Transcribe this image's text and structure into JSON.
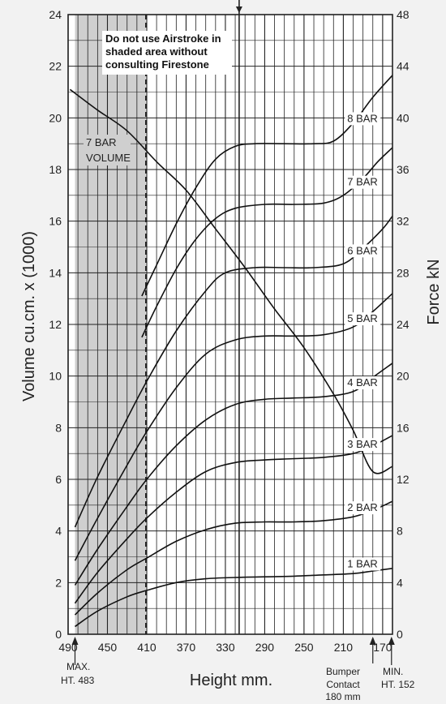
{
  "chart_data": {
    "type": "line",
    "xlabel": "Height mm.",
    "ylabel_left": "Volume cu.cm. x (1000)",
    "ylabel_right": "Force kN",
    "xlim": [
      490,
      160
    ],
    "x_ticks": [
      490,
      450,
      410,
      370,
      330,
      290,
      250,
      210,
      170
    ],
    "ylim_left": [
      0,
      24
    ],
    "y_ticks_left": [
      0,
      2,
      4,
      6,
      8,
      10,
      12,
      14,
      16,
      18,
      20,
      22,
      24
    ],
    "ylim_right": [
      0,
      48
    ],
    "y_ticks_right": [
      0,
      4,
      8,
      12,
      16,
      20,
      24,
      28,
      32,
      36,
      40,
      44,
      48
    ],
    "grid": true,
    "note": [
      "Do not use Airstroke in",
      "shaded area without",
      "consulting Firestone"
    ],
    "shaded_region": [
      483,
      411
    ],
    "annotations": {
      "max_height": [
        "MAX.",
        "HT. 483"
      ],
      "bumper_contact": [
        "Bumper",
        "Contact",
        "180 mm"
      ],
      "min_height": [
        "MIN.",
        "HT. 152"
      ]
    },
    "volume_series": {
      "name": "7 BAR VOLUME",
      "label_lines": [
        "7 BAR",
        "VOLUME"
      ],
      "axis": "left",
      "points": [
        [
          488,
          21.1
        ],
        [
          460,
          20.3
        ],
        [
          430,
          19.5
        ],
        [
          400,
          18.3
        ],
        [
          370,
          17.2
        ],
        [
          340,
          15.7
        ],
        [
          310,
          14.2
        ],
        [
          280,
          12.6
        ],
        [
          250,
          11.1
        ],
        [
          220,
          9.3
        ],
        [
          200,
          7.9
        ],
        [
          180,
          6.3
        ],
        [
          160,
          6.5
        ]
      ]
    },
    "series": [
      {
        "name": "1 BAR",
        "axis": "right",
        "points": [
          [
            483,
            0.6
          ],
          [
            460,
            1.8
          ],
          [
            430,
            2.9
          ],
          [
            410,
            3.4
          ],
          [
            380,
            4.0
          ],
          [
            350,
            4.3
          ],
          [
            320,
            4.4
          ],
          [
            290,
            4.45
          ],
          [
            260,
            4.5
          ],
          [
            230,
            4.6
          ],
          [
            200,
            4.7
          ],
          [
            180,
            4.9
          ],
          [
            160,
            5.1
          ]
        ]
      },
      {
        "name": "2 BAR",
        "axis": "right",
        "points": [
          [
            483,
            1.5
          ],
          [
            460,
            3.2
          ],
          [
            430,
            5.0
          ],
          [
            410,
            5.9
          ],
          [
            380,
            7.2
          ],
          [
            350,
            8.1
          ],
          [
            320,
            8.6
          ],
          [
            290,
            8.7
          ],
          [
            260,
            8.7
          ],
          [
            230,
            8.8
          ],
          [
            200,
            9.1
          ],
          [
            180,
            9.6
          ],
          [
            160,
            10.3
          ]
        ]
      },
      {
        "name": "3 BAR",
        "axis": "right",
        "points": [
          [
            483,
            2.4
          ],
          [
            460,
            4.8
          ],
          [
            430,
            7.4
          ],
          [
            410,
            9.0
          ],
          [
            380,
            11.0
          ],
          [
            350,
            12.6
          ],
          [
            320,
            13.3
          ],
          [
            290,
            13.5
          ],
          [
            260,
            13.6
          ],
          [
            230,
            13.7
          ],
          [
            200,
            14.0
          ],
          [
            180,
            14.6
          ],
          [
            160,
            15.4
          ]
        ]
      },
      {
        "name": "4 BAR",
        "axis": "right",
        "points": [
          [
            483,
            3.8
          ],
          [
            460,
            6.6
          ],
          [
            430,
            9.9
          ],
          [
            410,
            12.0
          ],
          [
            380,
            14.6
          ],
          [
            350,
            16.6
          ],
          [
            320,
            17.8
          ],
          [
            290,
            18.2
          ],
          [
            260,
            18.3
          ],
          [
            230,
            18.4
          ],
          [
            200,
            18.8
          ],
          [
            180,
            19.9
          ],
          [
            160,
            21.0
          ]
        ]
      },
      {
        "name": "5 BAR",
        "axis": "right",
        "points": [
          [
            483,
            5.7
          ],
          [
            460,
            9.0
          ],
          [
            430,
            13.1
          ],
          [
            410,
            15.7
          ],
          [
            380,
            19.1
          ],
          [
            350,
            21.7
          ],
          [
            320,
            22.8
          ],
          [
            290,
            23.1
          ],
          [
            260,
            23.1
          ],
          [
            230,
            23.2
          ],
          [
            200,
            23.8
          ],
          [
            180,
            25.0
          ],
          [
            160,
            26.4
          ]
        ]
      },
      {
        "name": "6 BAR",
        "axis": "right",
        "points": [
          [
            483,
            8.3
          ],
          [
            460,
            12.2
          ],
          [
            430,
            16.7
          ],
          [
            410,
            19.6
          ],
          [
            380,
            23.5
          ],
          [
            350,
            26.6
          ],
          [
            330,
            28.0
          ],
          [
            300,
            28.4
          ],
          [
            270,
            28.4
          ],
          [
            240,
            28.4
          ],
          [
            210,
            28.7
          ],
          [
            190,
            29.9
          ],
          [
            170,
            31.4
          ],
          [
            160,
            32.4
          ]
        ]
      },
      {
        "name": "7 BAR",
        "axis": "right",
        "points": [
          [
            415,
            23.0
          ],
          [
            400,
            25.4
          ],
          [
            380,
            28.3
          ],
          [
            360,
            30.6
          ],
          [
            340,
            32.2
          ],
          [
            320,
            33.0
          ],
          [
            290,
            33.3
          ],
          [
            260,
            33.3
          ],
          [
            230,
            33.4
          ],
          [
            210,
            34.0
          ],
          [
            190,
            35.3
          ],
          [
            175,
            36.6
          ],
          [
            160,
            37.7
          ]
        ]
      },
      {
        "name": "8 BAR",
        "axis": "right",
        "points": [
          [
            415,
            26.2
          ],
          [
            400,
            28.6
          ],
          [
            380,
            31.8
          ],
          [
            360,
            34.6
          ],
          [
            340,
            36.8
          ],
          [
            320,
            37.8
          ],
          [
            300,
            38.0
          ],
          [
            270,
            38.0
          ],
          [
            240,
            38.0
          ],
          [
            220,
            38.2
          ],
          [
            200,
            39.6
          ],
          [
            180,
            41.6
          ],
          [
            160,
            43.3
          ]
        ]
      }
    ]
  }
}
